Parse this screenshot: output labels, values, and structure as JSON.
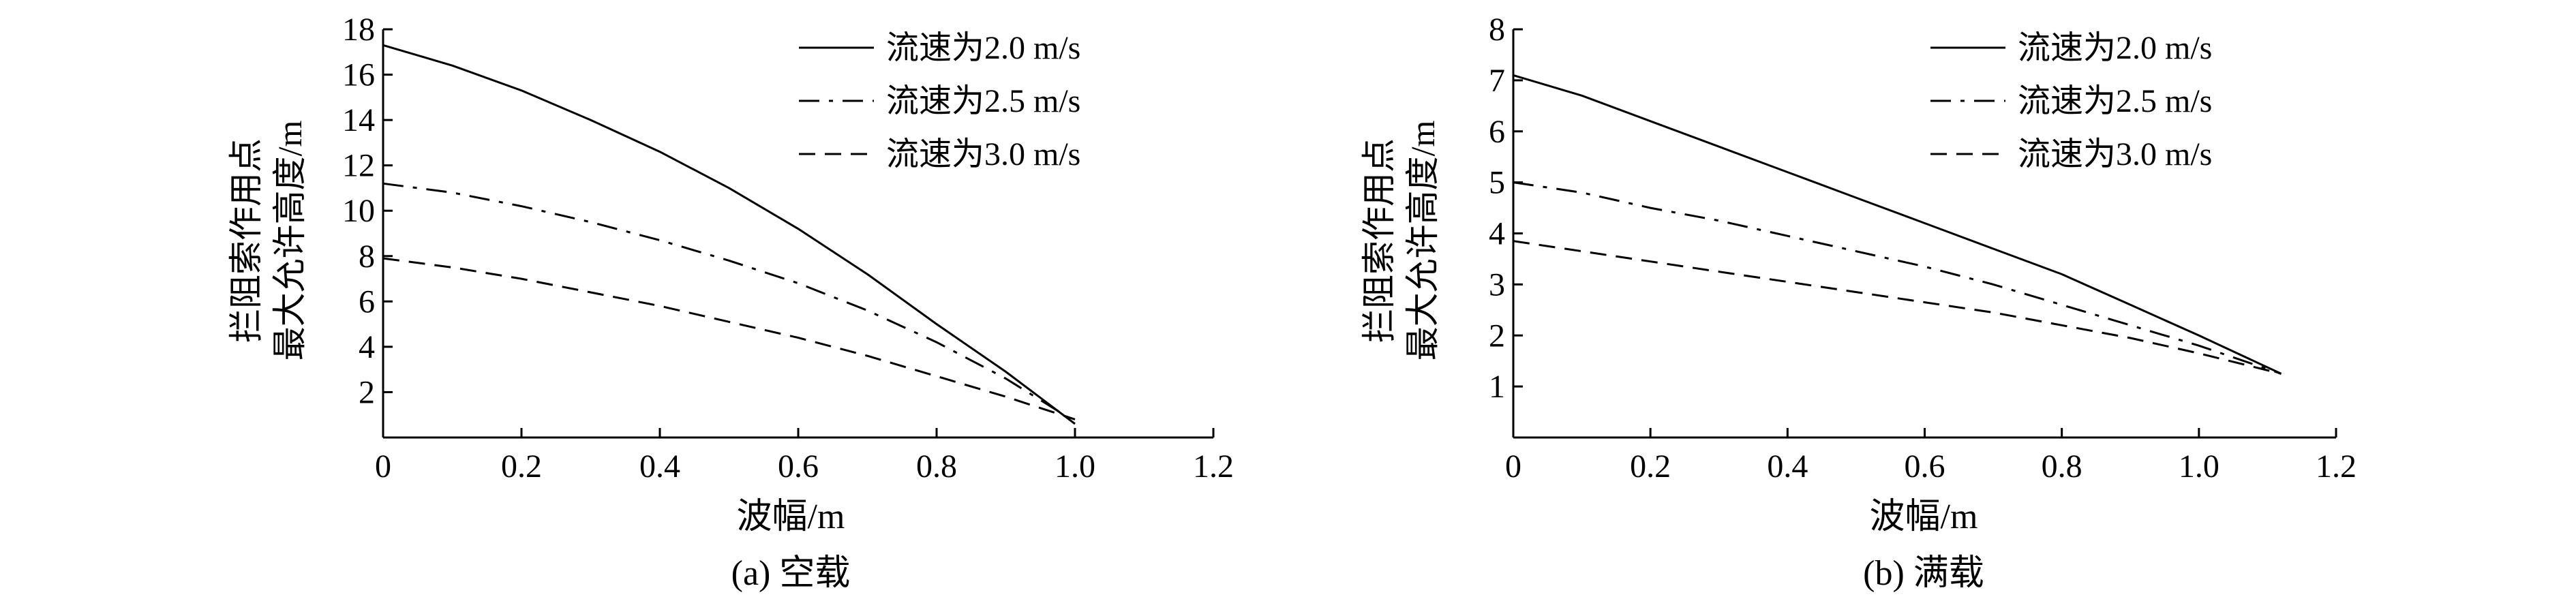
{
  "chart_data": [
    {
      "type": "line",
      "caption": "(a) 空载",
      "xlabel": "波幅/m",
      "ylabel_lines": [
        "拦阻索作用点",
        "最大允许高度/m"
      ],
      "xlim": [
        0,
        1.2
      ],
      "ylim": [
        0,
        18
      ],
      "xticks": [
        0,
        0.2,
        0.4,
        0.6,
        0.8,
        1.0,
        1.2
      ],
      "xtick_labels": [
        "0",
        "0.2",
        "0.4",
        "0.6",
        "0.8",
        "1.0",
        "1.2"
      ],
      "yticks": [
        2,
        4,
        6,
        8,
        10,
        12,
        14,
        16,
        18
      ],
      "ytick_labels": [
        "2",
        "4",
        "6",
        "8",
        "10",
        "12",
        "14",
        "16",
        "18"
      ],
      "grid": false,
      "legend_position": "top-right",
      "series": [
        {
          "name": "流速为2.0 m/s",
          "line_style": "solid",
          "x": [
            0,
            0.1,
            0.2,
            0.3,
            0.4,
            0.5,
            0.6,
            0.7,
            0.8,
            0.9,
            1.0
          ],
          "y": [
            17.3,
            16.4,
            15.3,
            14.0,
            12.6,
            11.0,
            9.2,
            7.2,
            5.0,
            2.9,
            0.6
          ]
        },
        {
          "name": "流速为2.5 m/s",
          "line_style": "dash-dot",
          "x": [
            0,
            0.1,
            0.2,
            0.3,
            0.4,
            0.5,
            0.6,
            0.7,
            0.8,
            0.9,
            1.0
          ],
          "y": [
            11.2,
            10.8,
            10.2,
            9.5,
            8.7,
            7.8,
            6.8,
            5.6,
            4.2,
            2.6,
            0.7
          ]
        },
        {
          "name": "流速为3.0 m/s",
          "line_style": "dashed",
          "x": [
            0,
            0.1,
            0.2,
            0.3,
            0.4,
            0.5,
            0.6,
            0.7,
            0.8,
            0.9,
            1.0
          ],
          "y": [
            7.9,
            7.5,
            7.0,
            6.4,
            5.8,
            5.1,
            4.4,
            3.6,
            2.7,
            1.8,
            0.8
          ]
        }
      ]
    },
    {
      "type": "line",
      "caption": "(b) 满载",
      "xlabel": "波幅/m",
      "ylabel_lines": [
        "拦阻索作用点",
        "最大允许高度/m"
      ],
      "xlim": [
        0,
        1.2
      ],
      "ylim": [
        0,
        8
      ],
      "xticks": [
        0,
        0.2,
        0.4,
        0.6,
        0.8,
        1.0,
        1.2
      ],
      "xtick_labels": [
        "0",
        "0.2",
        "0.4",
        "0.6",
        "0.8",
        "1.0",
        "1.2"
      ],
      "yticks": [
        1,
        2,
        3,
        4,
        5,
        6,
        7,
        8
      ],
      "ytick_labels": [
        "1",
        "2",
        "3",
        "4",
        "5",
        "6",
        "7",
        "8"
      ],
      "grid": false,
      "legend_position": "top-right",
      "series": [
        {
          "name": "流速为2.0 m/s",
          "line_style": "solid",
          "x": [
            0,
            0.1,
            0.2,
            0.3,
            0.4,
            0.5,
            0.6,
            0.7,
            0.8,
            0.9,
            1.0,
            1.12
          ],
          "y": [
            7.1,
            6.7,
            6.2,
            5.7,
            5.2,
            4.7,
            4.2,
            3.7,
            3.2,
            2.6,
            2.0,
            1.25
          ]
        },
        {
          "name": "流速为2.5 m/s",
          "line_style": "dash-dot",
          "x": [
            0,
            0.1,
            0.2,
            0.3,
            0.4,
            0.5,
            0.6,
            0.7,
            0.8,
            0.9,
            1.0,
            1.12
          ],
          "y": [
            5.0,
            4.8,
            4.5,
            4.25,
            3.95,
            3.65,
            3.35,
            3.0,
            2.6,
            2.2,
            1.8,
            1.25
          ]
        },
        {
          "name": "流速为3.0 m/s",
          "line_style": "dashed",
          "x": [
            0,
            0.1,
            0.2,
            0.3,
            0.4,
            0.5,
            0.6,
            0.7,
            0.8,
            0.9,
            1.0,
            1.12
          ],
          "y": [
            3.85,
            3.65,
            3.45,
            3.25,
            3.05,
            2.85,
            2.65,
            2.45,
            2.2,
            1.95,
            1.65,
            1.25
          ]
        }
      ]
    }
  ]
}
